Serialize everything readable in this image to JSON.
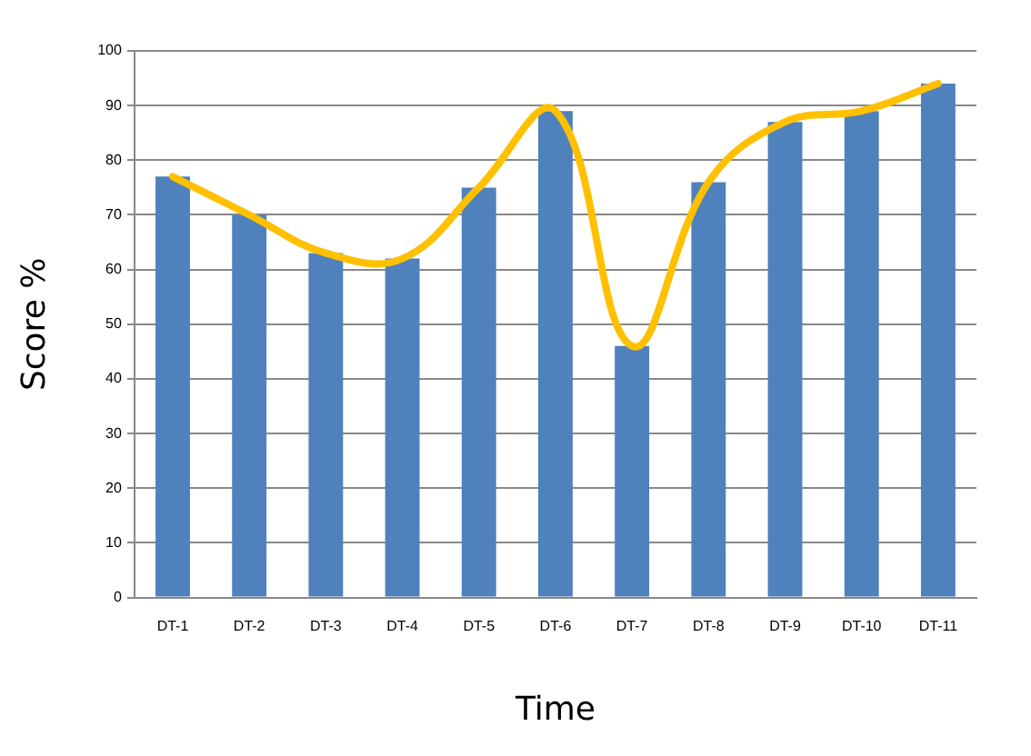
{
  "chart_data": {
    "type": "bar",
    "xlabel": "Time",
    "ylabel": "Score %",
    "categories": [
      "DT-1",
      "DT-2",
      "DT-3",
      "DT-4",
      "DT-5",
      "DT-6",
      "DT-7",
      "DT-8",
      "DT-9",
      "DT-10",
      "DT-11"
    ],
    "series": [
      {
        "color": "#4f81bd",
        "values": [
          77,
          70,
          63,
          62,
          75,
          89,
          46,
          76,
          87,
          89,
          94
        ]
      },
      {
        "type": "line",
        "color": "#ffc000",
        "values": [
          77,
          70,
          63,
          62,
          75,
          89,
          46,
          76,
          87,
          89,
          94
        ]
      }
    ],
    "ylim": [
      0,
      100
    ],
    "yticks": [
      0,
      10,
      20,
      30,
      40,
      50,
      60,
      70,
      80,
      90,
      100
    ],
    "grid": "y",
    "legend": false,
    "marker": "none"
  }
}
